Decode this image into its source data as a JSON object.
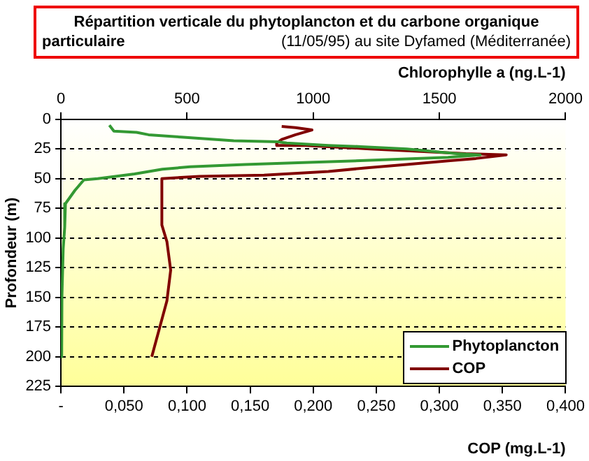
{
  "chart_data": {
    "type": "line",
    "title": "Répartition verticale du phytoplancton et du carbone organique particulaire",
    "subtitle": "(11/05/95) au site Dyfamed (Méditerranée)",
    "xlabel": "COP (mg.L-1)",
    "x2label": "Chlorophylle a (ng.L-1)",
    "ylabel": "Profondeur (m)",
    "xlim": [
      0,
      0.4
    ],
    "xticks": [
      {
        "value": 0,
        "label": "-"
      },
      {
        "value": 0.05,
        "label": "0,050"
      },
      {
        "value": 0.1,
        "label": "0,100"
      },
      {
        "value": 0.15,
        "label": "0,150"
      },
      {
        "value": 0.2,
        "label": "0,200"
      },
      {
        "value": 0.25,
        "label": "0,250"
      },
      {
        "value": 0.3,
        "label": "0,300"
      },
      {
        "value": 0.35,
        "label": "0,350"
      },
      {
        "value": 0.4,
        "label": "0,400"
      }
    ],
    "x2lim": [
      0,
      2000
    ],
    "x2ticks": [
      0,
      500,
      1000,
      1500,
      2000
    ],
    "ylim": [
      225,
      0
    ],
    "yticks": [
      0,
      25,
      50,
      75,
      100,
      125,
      150,
      175,
      200,
      225
    ],
    "grid": "y",
    "legend": "bottom right",
    "marker": "none",
    "line_style": "solid",
    "series": [
      {
        "name": "Phytoplancton",
        "color": "#339933",
        "axis": "x2",
        "x": [
          192,
          210,
          300,
          347,
          476,
          685,
          860,
          895,
          1060,
          1188,
          1370,
          1570,
          1662,
          1534,
          1297,
          1023,
          730,
          512,
          402,
          292,
          146,
          91,
          55,
          18,
          15,
          9,
          4,
          3
        ],
        "values": [
          5,
          10,
          11,
          13,
          15,
          18,
          19,
          20,
          22,
          23,
          25,
          29,
          30,
          32,
          34,
          36,
          38,
          40,
          42,
          46,
          50,
          51,
          60,
          71,
          91,
          109,
          149,
          200
        ]
      },
      {
        "name": "COP",
        "color": "#800000",
        "x": [
          0.175,
          0.186,
          0.199,
          0.186,
          0.175,
          0.171,
          0.171,
          0.194,
          0.212,
          0.245,
          0.285,
          0.321,
          0.353,
          0.329,
          0.307,
          0.274,
          0.241,
          0.212,
          0.161,
          0.11,
          0.08,
          0.08,
          0.084,
          0.087,
          0.084,
          0.072
        ],
        "values": [
          6,
          7,
          9,
          13,
          17,
          20,
          22,
          22,
          23,
          25,
          27,
          29,
          30,
          33,
          35,
          38,
          41,
          44,
          47,
          48,
          50,
          89,
          103,
          127,
          153,
          200
        ]
      }
    ]
  }
}
